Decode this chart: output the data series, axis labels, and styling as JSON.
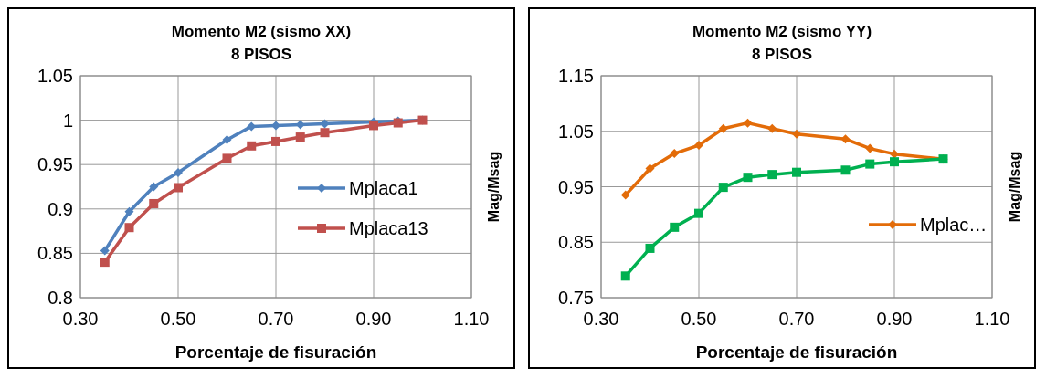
{
  "chart_data": [
    {
      "type": "line",
      "title": "Momento M2 (sismo XX)",
      "subtitle": "8 PISOS",
      "xlabel": "Porcentaje de fisuración",
      "ylabel": "Mag/Msag",
      "x": [
        0.35,
        0.4,
        0.45,
        0.5,
        0.6,
        0.65,
        0.7,
        0.75,
        0.8,
        0.9,
        0.95,
        1.0
      ],
      "series": [
        {
          "name": "Mplaca1",
          "color": "#4f81bd",
          "marker": "diamond",
          "values": [
            0.853,
            0.897,
            0.925,
            0.941,
            0.978,
            0.993,
            0.994,
            0.995,
            0.996,
            0.998,
            0.999,
            1.0
          ]
        },
        {
          "name": "Mplaca13",
          "color": "#c0504d",
          "marker": "square",
          "values": [
            0.84,
            0.879,
            0.906,
            0.924,
            0.957,
            0.971,
            0.976,
            0.981,
            0.986,
            0.994,
            0.997,
            1.0
          ]
        }
      ],
      "xlim": [
        0.3,
        1.1
      ],
      "xticks": [
        {
          "value": 0.3,
          "label": "0.30"
        },
        {
          "value": 0.5,
          "label": "0.50"
        },
        {
          "value": 0.7,
          "label": "0.70"
        },
        {
          "value": 0.9,
          "label": "0.90"
        },
        {
          "value": 1.1,
          "label": "1.10"
        }
      ],
      "ylim": [
        0.8,
        1.05
      ],
      "yticks": [
        0.8,
        0.85,
        0.9,
        0.95,
        1,
        1.05
      ],
      "grid": true,
      "legend": "bottom right"
    },
    {
      "type": "line",
      "title": "Momento M2 (sismo YY)",
      "subtitle": "8 PISOS",
      "xlabel": "Porcentaje de fisuración",
      "ylabel": "Mag/Msag",
      "x": [
        0.35,
        0.4,
        0.45,
        0.5,
        0.55,
        0.6,
        0.65,
        0.7,
        0.8,
        0.85,
        0.9,
        1.0
      ],
      "series": [
        {
          "name": "Mplac…",
          "color": "#e36c09",
          "marker": "diamond",
          "values": [
            0.935,
            0.983,
            1.01,
            1.025,
            1.055,
            1.065,
            1.055,
            1.045,
            1.036,
            1.019,
            1.009,
            1.0
          ]
        },
        {
          "color": "#00b050",
          "marker": "square",
          "values": [
            0.789,
            0.839,
            0.877,
            0.902,
            0.949,
            0.967,
            0.972,
            0.976,
            0.98,
            0.991,
            0.995,
            1.0
          ]
        }
      ],
      "xlim": [
        0.3,
        1.1
      ],
      "xticks": [
        {
          "value": 0.3,
          "label": "0.30"
        },
        {
          "value": 0.5,
          "label": "0.50"
        },
        {
          "value": 0.7,
          "label": "0.70"
        },
        {
          "value": 0.9,
          "label": "0.90"
        },
        {
          "value": 1.1,
          "label": "1.10"
        }
      ],
      "ylim": [
        0.75,
        1.15
      ],
      "yticks": [
        0.75,
        0.85,
        0.95,
        1.05,
        1.15
      ],
      "grid": true,
      "legend": "right"
    }
  ]
}
